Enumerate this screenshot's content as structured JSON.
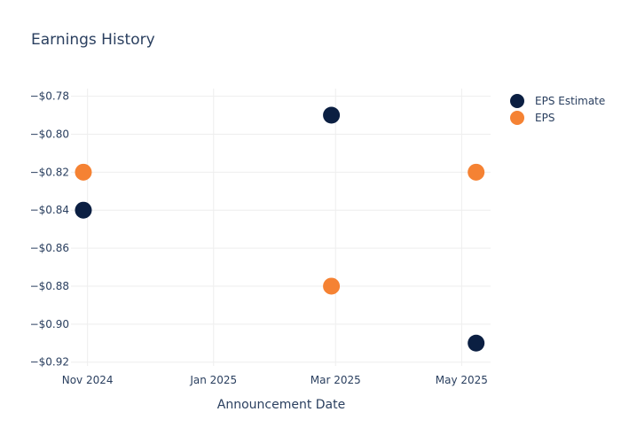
{
  "chart_data": {
    "type": "scatter",
    "title": "Earnings History",
    "xlabel": "Announcement Date",
    "ylabel": "",
    "x_ticks": [
      {
        "date": "2024-11-01",
        "label": "Nov 2024"
      },
      {
        "date": "2025-01-01",
        "label": "Jan 2025"
      },
      {
        "date": "2025-03-01",
        "label": "Mar 2025"
      },
      {
        "date": "2025-05-01",
        "label": "May 2025"
      }
    ],
    "y_ticks": [
      {
        "value": -0.78,
        "label": "−$0.78"
      },
      {
        "value": -0.8,
        "label": "−$0.80"
      },
      {
        "value": -0.82,
        "label": "−$0.82"
      },
      {
        "value": -0.84,
        "label": "−$0.84"
      },
      {
        "value": -0.86,
        "label": "−$0.86"
      },
      {
        "value": -0.88,
        "label": "−$0.88"
      },
      {
        "value": -0.9,
        "label": "−$0.90"
      },
      {
        "value": -0.92,
        "label": "−$0.92"
      }
    ],
    "xlim": [
      "2024-10-24",
      "2025-05-15"
    ],
    "ylim": [
      -0.922,
      -0.776
    ],
    "grid": true,
    "legend_position": "top-right",
    "series": [
      {
        "name": "EPS Estimate",
        "color": "#0b1f42",
        "points": [
          {
            "x": "2024-10-30",
            "y": -0.84
          },
          {
            "x": "2025-02-27",
            "y": -0.79
          },
          {
            "x": "2025-05-08",
            "y": -0.91
          }
        ]
      },
      {
        "name": "EPS",
        "color": "#f58233",
        "points": [
          {
            "x": "2024-10-30",
            "y": -0.82
          },
          {
            "x": "2025-02-27",
            "y": -0.88
          },
          {
            "x": "2025-05-08",
            "y": -0.82
          }
        ]
      }
    ]
  }
}
